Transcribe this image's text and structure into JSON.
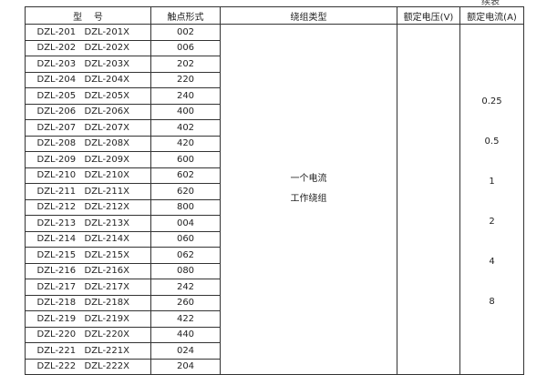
{
  "caption": "续表",
  "headers": {
    "model": "型    号",
    "contact": "触点形式",
    "winding": "绕组类型",
    "voltage": "额定电压(V)",
    "current": "额定电流(A)"
  },
  "rows": [
    [
      "DZL-201",
      "DZL-201X",
      "002"
    ],
    [
      "DZL-202",
      "DZL-202X",
      "006"
    ],
    [
      "DZL-203",
      "DZL-203X",
      "202"
    ],
    [
      "DZL-204",
      "DZL-204X",
      "220"
    ],
    [
      "DZL-205",
      "DZL-205X",
      "240"
    ],
    [
      "DZL-206",
      "DZL-206X",
      "400"
    ],
    [
      "DZL-207",
      "DZL-207X",
      "402"
    ],
    [
      "DZL-208",
      "DZL-208X",
      "420"
    ],
    [
      "DZL-209",
      "DZL-209X",
      "600"
    ],
    [
      "DZL-210",
      "DZL-210X",
      "602"
    ],
    [
      "DZL-211",
      "DZL-211X",
      "620"
    ],
    [
      "DZL-212",
      "DZL-212X",
      "800"
    ],
    [
      "DZL-213",
      "DZL-213X",
      "004"
    ],
    [
      "DZL-214",
      "DZL-214X",
      "060"
    ],
    [
      "DZL-215",
      "DZL-215X",
      "062"
    ],
    [
      "DZL-216",
      "DZL-216X",
      "080"
    ],
    [
      "DZL-217",
      "DZL-217X",
      "242"
    ],
    [
      "DZL-218",
      "DZL-218X",
      "260"
    ],
    [
      "DZL-219",
      "DZL-219X",
      "422"
    ],
    [
      "DZL-220",
      "DZL-220X",
      "440"
    ],
    [
      "DZL-221",
      "DZL-221X",
      "024"
    ],
    [
      "DZL-222",
      "DZL-222X",
      "204"
    ]
  ],
  "winding_type": [
    "一个电流",
    "工作绕组"
  ],
  "currents": [
    "0.25",
    "0.5",
    "1",
    "2",
    "4",
    "8"
  ]
}
